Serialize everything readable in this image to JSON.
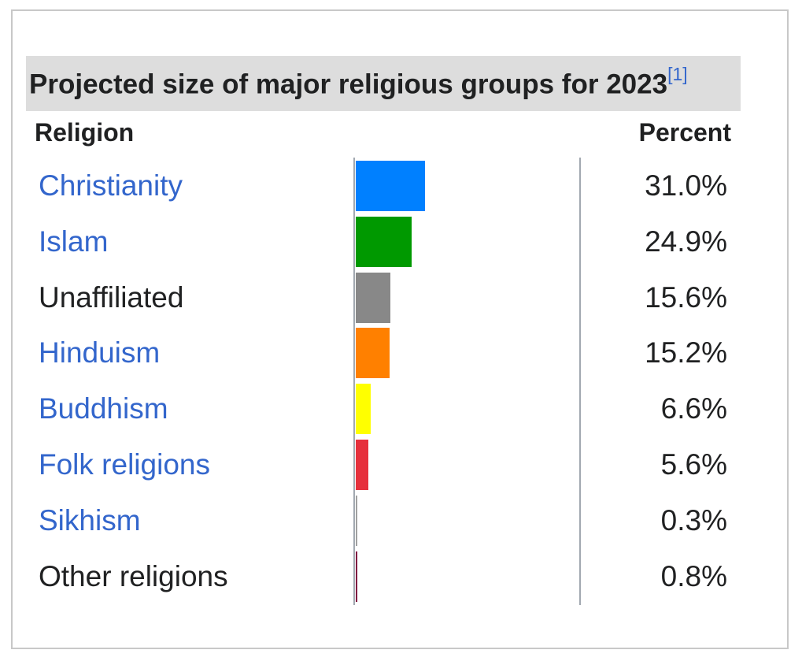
{
  "caption": {
    "title": "Projected size of major religious groups for 2023",
    "ref": "[1]"
  },
  "headers": {
    "religion": "Religion",
    "percent": "Percent"
  },
  "chart_data": {
    "type": "bar",
    "title": "Projected size of major religious groups for 2023",
    "xlabel": "",
    "ylabel": "",
    "orientation": "horizontal",
    "ylim": [
      0,
      100
    ],
    "categories": [
      "Christianity",
      "Islam",
      "Unaffiliated",
      "Hinduism",
      "Buddhism",
      "Folk religions",
      "Sikhism",
      "Other religions"
    ],
    "values": [
      31.0,
      24.9,
      15.6,
      15.2,
      6.6,
      5.6,
      0.3,
      0.8
    ],
    "labels": [
      "31.0%",
      "24.9%",
      "15.6%",
      "15.2%",
      "6.6%",
      "5.6%",
      "0.3%",
      "0.8%"
    ],
    "colors": [
      "#0080ff",
      "#009900",
      "#888888",
      "#ff8000",
      "#ffff00",
      "#e6303c",
      "#a0a0a0",
      "#800040"
    ],
    "linked": [
      true,
      true,
      false,
      true,
      true,
      true,
      true,
      false
    ]
  }
}
